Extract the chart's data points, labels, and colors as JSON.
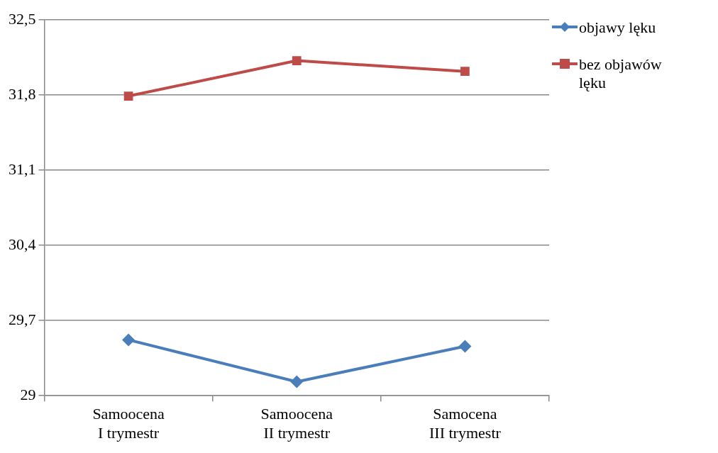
{
  "chart_data": {
    "type": "line",
    "categories": [
      "Samoocena I trymestr",
      "Samoocena II trymestr",
      "Samocena III trymestr"
    ],
    "series": [
      {
        "name": "objawy lęku",
        "color": "#4a7ebb",
        "marker": "diamond",
        "values": [
          29.52,
          29.13,
          29.46
        ]
      },
      {
        "name": "bez objawów lęku",
        "color": "#be4b48",
        "marker": "square",
        "values": [
          31.79,
          32.12,
          32.02
        ]
      }
    ],
    "ylim": [
      29,
      32.5
    ],
    "yticks": [
      29,
      {
        "value": 29.7,
        "label": "29,7"
      },
      {
        "value": 30.4,
        "label": "30,4"
      },
      {
        "value": 31.1,
        "label": "31,1"
      },
      {
        "value": 31.8,
        "label": "31,8"
      },
      {
        "value": 32.5,
        "label": "32,5"
      }
    ],
    "grid": "y",
    "legend": "right",
    "line_style": "solid"
  }
}
